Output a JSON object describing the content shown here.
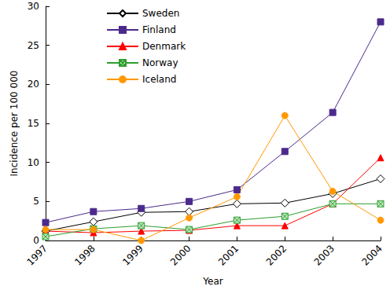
{
  "chart_data": {
    "type": "line",
    "x_label": "Year",
    "y_label": "Incidence per 100 000",
    "categories": [
      "1997",
      "1998",
      "1999",
      "2000",
      "2001",
      "2002",
      "2003",
      "2004"
    ],
    "series": [
      {
        "name": "Sweden",
        "color": "#000000",
        "marker": "diamond",
        "values": [
          1.2,
          2.4,
          3.6,
          3.7,
          4.7,
          4.8,
          6.0,
          7.9
        ]
      },
      {
        "name": "Finland",
        "color": "#4b2a8c",
        "marker": "square",
        "values": [
          2.3,
          3.7,
          4.1,
          5.0,
          6.5,
          11.4,
          16.4,
          28.0
        ]
      },
      {
        "name": "Denmark",
        "color": "#ff0000",
        "marker": "triangle",
        "values": [
          1.2,
          1.0,
          1.2,
          1.3,
          1.9,
          1.9,
          4.7,
          10.6
        ]
      },
      {
        "name": "Norway",
        "color": "#2e9e2e",
        "marker": "x",
        "values": [
          0.5,
          1.5,
          1.9,
          1.4,
          2.6,
          3.1,
          4.7,
          4.7
        ]
      },
      {
        "name": "Iceland",
        "color": "#ff9900",
        "marker": "circle",
        "values": [
          1.4,
          1.4,
          0.0,
          2.9,
          5.6,
          16.0,
          6.3,
          2.6
        ]
      }
    ],
    "ylim": [
      0,
      30
    ],
    "yticks": [
      0,
      5,
      10,
      15,
      20,
      25,
      30
    ],
    "grid": false,
    "legend": "upper left"
  }
}
